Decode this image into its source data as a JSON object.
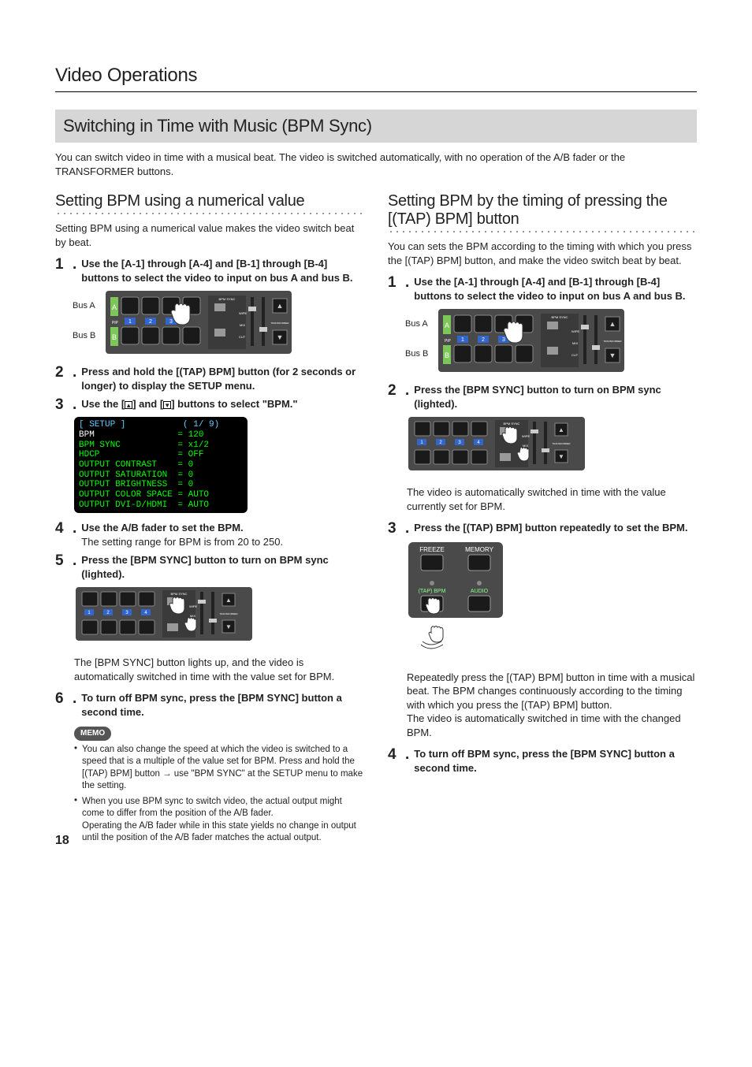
{
  "page_title": "Video Operations",
  "section_title": "Switching in Time with Music (BPM Sync)",
  "intro": "You can switch video in time with a musical beat. The video is switched automatically, with no operation of the A/B fader or the TRANSFORMER buttons.",
  "page_number": "18",
  "colors": {
    "section_bg": "#d6d6d6",
    "memo_bg": "#555555",
    "screen_bg": "#000000",
    "screen_fg": "#00ff33",
    "screen_hdr": "#66ccff",
    "panel_fill": "#4a4a4a",
    "panel_light": "#bfbfbf",
    "btn_num_bg": "#3366cc"
  },
  "left": {
    "heading": "Setting BPM using a numerical value",
    "para": "Setting BPM using a numerical value makes the video switch beat by beat.",
    "steps": [
      {
        "n": "1",
        "bold": "Use the [A-1] through [A-4] and [B-1] through [B-4] buttons to select the video to input on bus A and bus B."
      },
      {
        "n": "2",
        "bold": "Press and hold the [(TAP) BPM] button (for 2 seconds or longer) to display the SETUP menu."
      },
      {
        "n": "3",
        "bold_pre": "Use the [",
        "bold_mid": "] and [",
        "bold_post": "] buttons to select \"BPM.\""
      },
      {
        "n": "4",
        "bold": "Use the A/B fader to set the BPM.",
        "plain": "The setting range for BPM is from 20 to 250."
      },
      {
        "n": "5",
        "bold": "Press the [BPM SYNC] button to turn on BPM sync (lighted).",
        "after_plain": "The [BPM SYNC] button lights up, and the video is automatically switched in time with the value set for BPM."
      },
      {
        "n": "6",
        "bold": "To turn off BPM sync, press the [BPM SYNC] button a second time."
      }
    ],
    "bus_a": "Bus A",
    "bus_b": "Bus B",
    "setup": {
      "title": "[ SETUP ]",
      "pager": "( 1/ 9)",
      "rows": [
        [
          "BPM",
          "=",
          "120"
        ],
        [
          "BPM SYNC",
          "=",
          "x1/2"
        ],
        [
          "HDCP",
          "=",
          "OFF"
        ],
        [
          "OUTPUT CONTRAST",
          "=",
          "0"
        ],
        [
          "OUTPUT SATURATION",
          "=",
          "0"
        ],
        [
          "OUTPUT BRIGHTNESS",
          "=",
          "0"
        ],
        [
          "OUTPUT COLOR SPACE",
          "=",
          "AUTO"
        ],
        [
          "OUTPUT DVI-D/HDMI",
          "=",
          "AUTO"
        ]
      ]
    },
    "memo_label": "MEMO",
    "memo": [
      "You can also change the speed at which the video is switched to a speed that is a multiple of the value set for BPM. Press and hold the [(TAP) BPM] button → use \"BPM SYNC\" at the SETUP menu to make the setting.",
      "When you use BPM sync to switch video, the actual output might come to differ from the position of the A/B fader.\nOperating the A/B fader while in this state yields no change in output until the position of the A/B fader matches the actual output."
    ]
  },
  "right": {
    "heading": "Setting BPM by the timing of pressing the [(TAP) BPM] button",
    "para": "You can sets the BPM according to the timing with which you press the [(TAP) BPM] button, and make the video switch beat by beat.",
    "steps": [
      {
        "n": "1",
        "bold": "Use the [A-1] through [A-4] and [B-1] through [B-4] buttons to select the video to input on bus A and bus B."
      },
      {
        "n": "2",
        "bold": "Press the [BPM SYNC] button to turn on BPM sync (lighted).",
        "after_plain": "The video is automatically switched in time with the value currently set for BPM."
      },
      {
        "n": "3",
        "bold": "Press the [(TAP) BPM] button repeatedly to set the BPM.",
        "after_plain": "Repeatedly press the [(TAP) BPM] button in time with a musical beat. The BPM changes continuously according to the timing with which you press the [(TAP) BPM] button.\nThe video is automatically switched in time with the changed BPM."
      },
      {
        "n": "4",
        "bold": "To turn off BPM sync, press the [BPM SYNC] button a second time."
      }
    ],
    "bus_a": "Bus A",
    "bus_b": "Bus B",
    "tap_labels": {
      "freeze": "FREEZE",
      "memory": "MEMORY",
      "tapbpm": "(TAP) BPM",
      "audio": "AUDIO"
    }
  }
}
